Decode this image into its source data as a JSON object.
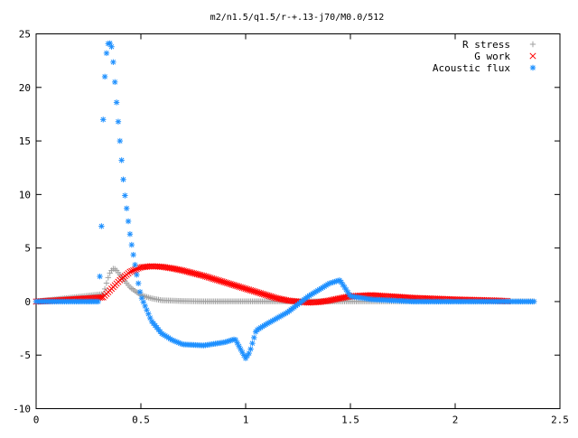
{
  "chart_data": {
    "type": "scatter",
    "title": "m2/n1.5/q1.5/r-+.13-j70/M0.0/512",
    "xlabel": "",
    "ylabel": "",
    "xlim": [
      0,
      2.5
    ],
    "ylim": [
      -10,
      25
    ],
    "xticks": [
      "0",
      "0.5",
      "1",
      "1.5",
      "2",
      "2.5"
    ],
    "yticks": [
      "-10",
      "-5",
      "0",
      "5",
      "10",
      "15",
      "20",
      "25"
    ],
    "grid": false,
    "legend_position": "top-right",
    "series": [
      {
        "name": "R stress",
        "marker": "+",
        "color": "#a0a0a0",
        "x": [
          0.0,
          0.32,
          0.33,
          0.34,
          0.35,
          0.36,
          0.37,
          0.38,
          0.4,
          0.42,
          0.45,
          0.5,
          0.55,
          0.6,
          0.7,
          0.8,
          0.9,
          1.0,
          1.2,
          1.4,
          1.6,
          1.8,
          2.0,
          2.2,
          2.38
        ],
        "y": [
          0.0,
          0.7,
          1.3,
          2.0,
          2.6,
          2.9,
          3.1,
          3.0,
          2.5,
          2.0,
          1.3,
          0.6,
          0.3,
          0.12,
          0.05,
          0.02,
          0.02,
          0.02,
          0.02,
          0.02,
          0.02,
          0.02,
          0.02,
          0.02,
          0.02
        ]
      },
      {
        "name": "G work",
        "marker": "x",
        "color": "#ff0000",
        "x": [
          0.0,
          0.32,
          0.35,
          0.4,
          0.45,
          0.5,
          0.55,
          0.6,
          0.65,
          0.7,
          0.8,
          0.9,
          1.0,
          1.1,
          1.15,
          1.2,
          1.25,
          1.3,
          1.35,
          1.4,
          1.5,
          1.6,
          1.8,
          2.0,
          2.2,
          2.25
        ],
        "y": [
          0.0,
          0.4,
          1.0,
          2.0,
          2.8,
          3.2,
          3.3,
          3.25,
          3.1,
          2.9,
          2.4,
          1.8,
          1.2,
          0.6,
          0.3,
          0.1,
          0.0,
          -0.1,
          -0.05,
          0.1,
          0.5,
          0.6,
          0.35,
          0.2,
          0.1,
          0.05
        ]
      },
      {
        "name": "Acoustic flux",
        "marker": "*",
        "color": "#1e90ff",
        "x": [
          0.0,
          0.3,
          0.315,
          0.32,
          0.33,
          0.34,
          0.35,
          0.36,
          0.37,
          0.38,
          0.4,
          0.42,
          0.45,
          0.48,
          0.5,
          0.55,
          0.6,
          0.65,
          0.7,
          0.8,
          0.9,
          0.95,
          0.98,
          1.0,
          1.02,
          1.05,
          1.1,
          1.2,
          1.3,
          1.4,
          1.45,
          1.5,
          1.6,
          1.8,
          2.0,
          2.2,
          2.38
        ],
        "y": [
          0.0,
          0.0,
          8.8,
          17.0,
          22.0,
          24.0,
          24.2,
          23.8,
          22.0,
          19.5,
          15.0,
          10.5,
          6.0,
          2.5,
          0.5,
          -1.8,
          -3.0,
          -3.6,
          -4.0,
          -4.1,
          -3.8,
          -3.5,
          -4.6,
          -5.3,
          -4.7,
          -2.7,
          -2.1,
          -1.0,
          0.5,
          1.7,
          2.0,
          0.5,
          0.2,
          0.0,
          0.0,
          0.0,
          0.0
        ]
      }
    ]
  }
}
